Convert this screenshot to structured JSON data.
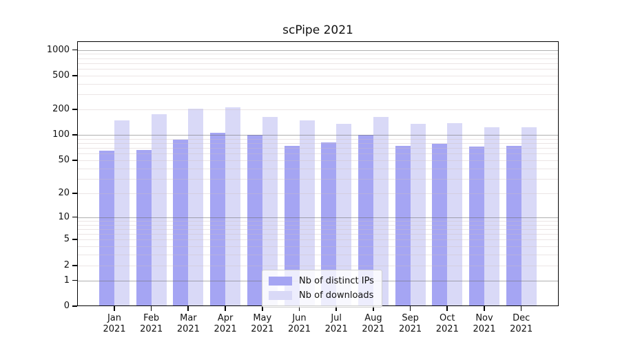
{
  "title": "scPipe 2021",
  "colors": {
    "distinct_ips_bar": "#a5a5f3",
    "downloads_bar": "#d9d9f7",
    "major_gridline": "#b3b3b3",
    "minor_gridline": "#ece7e7",
    "axis_spine": "#000000"
  },
  "y_axis": {
    "tick_values": [
      1000,
      500,
      200,
      100,
      50,
      20,
      10,
      5,
      2,
      1,
      0
    ],
    "tick_labels": [
      "1000",
      "500",
      "200",
      "100",
      "50",
      "20",
      "10",
      "5",
      "2",
      "1",
      "0"
    ]
  },
  "x_axis": {
    "months": [
      "Jan",
      "Feb",
      "Mar",
      "Apr",
      "May",
      "Jun",
      "Jul",
      "Aug",
      "Sep",
      "Oct",
      "Nov",
      "Dec"
    ],
    "year": "2021"
  },
  "legend": {
    "items": [
      {
        "label": "Nb of distinct IPs",
        "color": "#a5a5f3"
      },
      {
        "label": "Nb of downloads",
        "color": "#d9d9f7"
      }
    ]
  },
  "chart_data": {
    "type": "bar",
    "title": "scPipe 2021",
    "xlabel": "",
    "ylabel": "",
    "categories": [
      "Jan 2021",
      "Feb 2021",
      "Mar 2021",
      "Apr 2021",
      "May 2021",
      "Jun 2021",
      "Jul 2021",
      "Aug 2021",
      "Sep 2021",
      "Oct 2021",
      "Nov 2021",
      "Dec 2021"
    ],
    "series": [
      {
        "name": "Nb of distinct IPs",
        "color": "#a5a5f3",
        "values": [
          65,
          67,
          88,
          107,
          100,
          75,
          81,
          100,
          75,
          79,
          73,
          74
        ]
      },
      {
        "name": "Nb of downloads",
        "color": "#d9d9f7",
        "values": [
          149,
          176,
          203,
          212,
          164,
          150,
          136,
          164,
          136,
          138,
          123,
          124
        ]
      }
    ],
    "y_scale": "log10(1+v)",
    "y_ticks": [
      0,
      1,
      2,
      5,
      10,
      20,
      50,
      100,
      200,
      500,
      1000
    ],
    "ylim": [
      0,
      1240
    ],
    "grid": true,
    "legend_position": "lower center"
  }
}
